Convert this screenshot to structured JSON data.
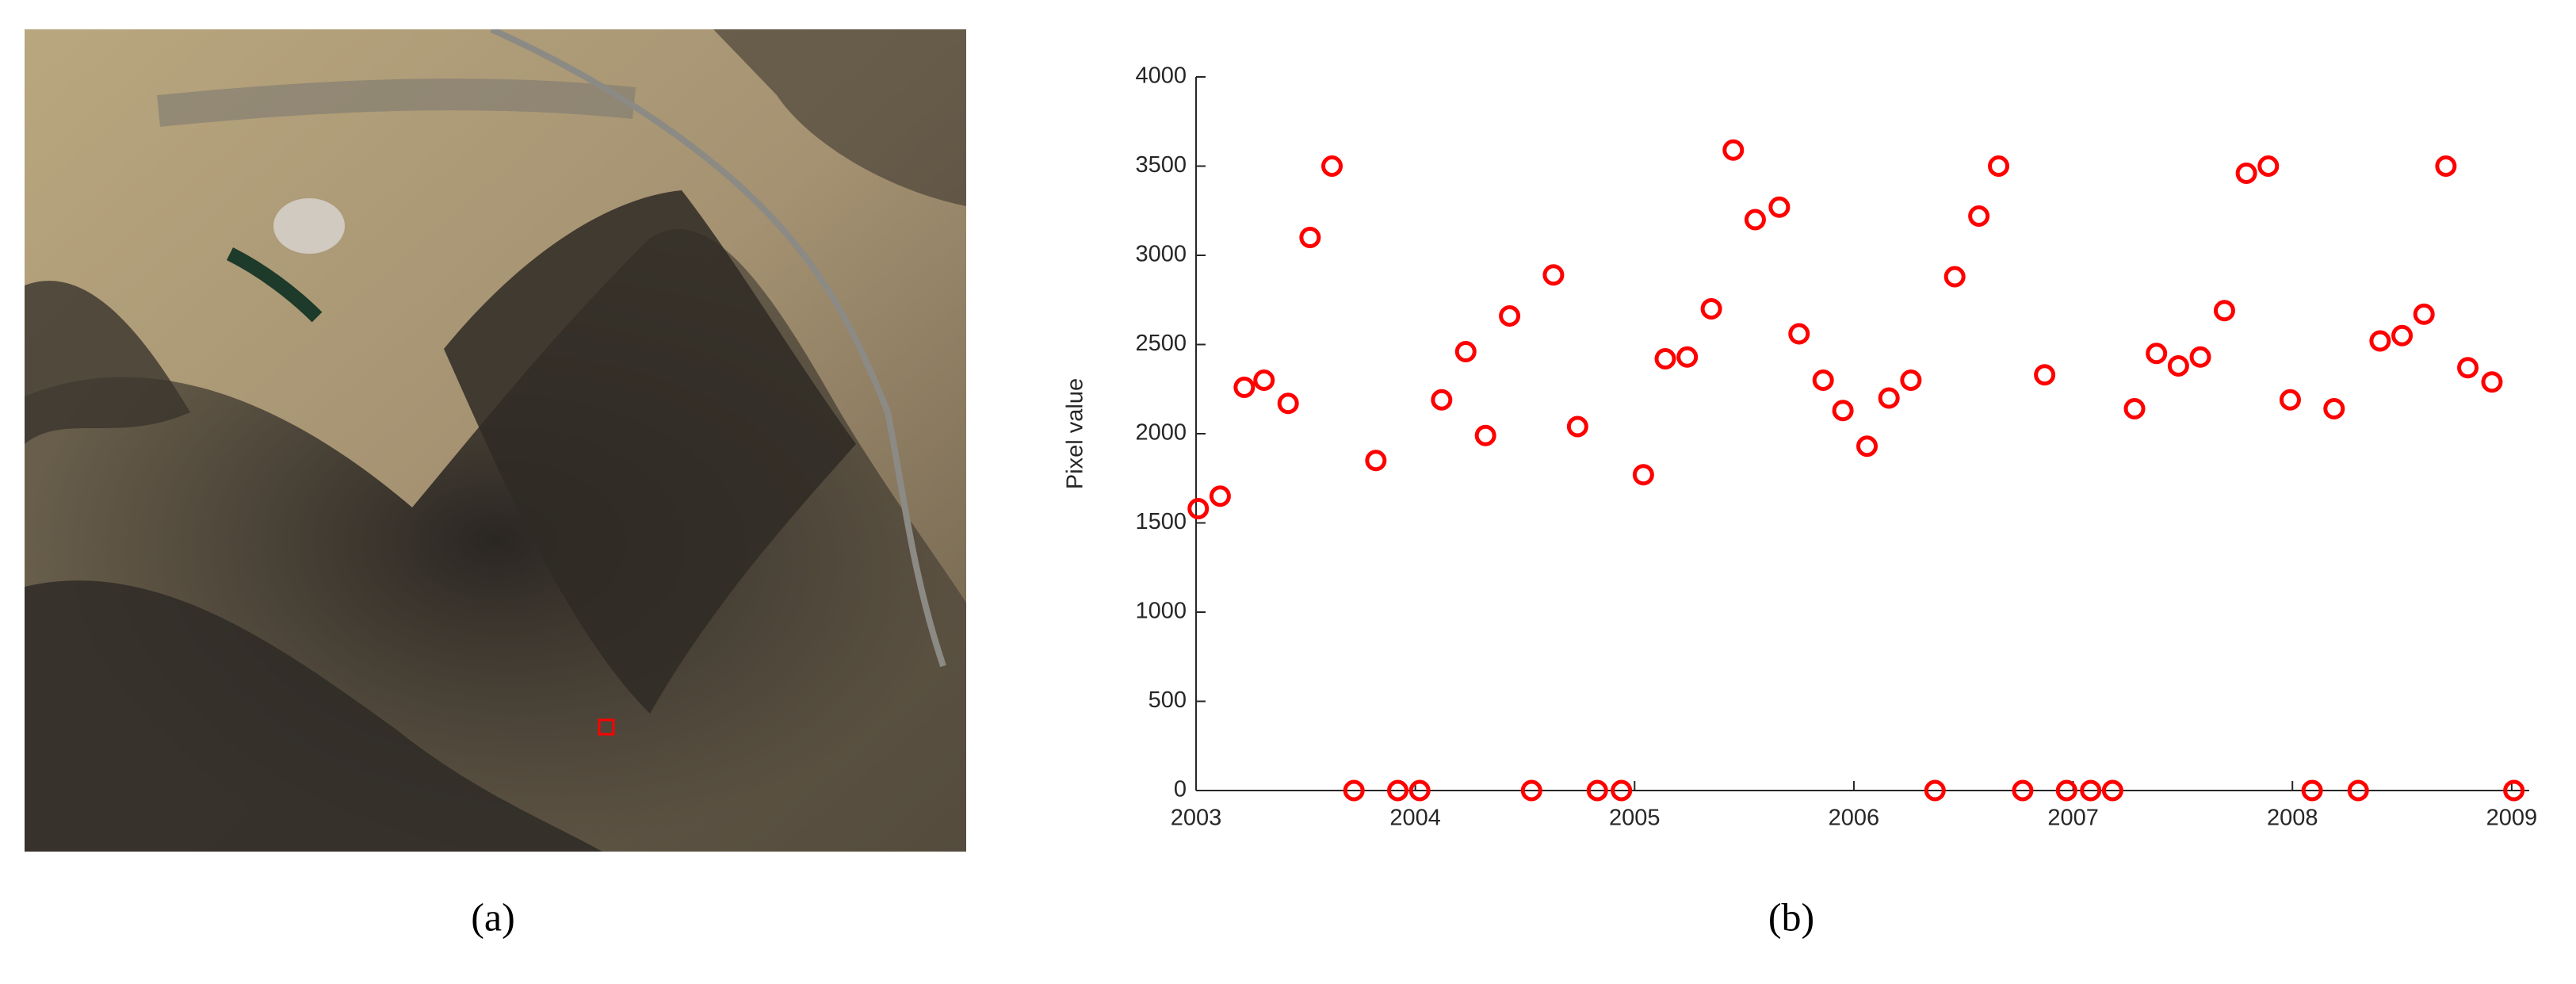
{
  "panel_labels": [
    "(a)",
    "(b)"
  ],
  "chart_data": {
    "type": "scatter",
    "y_label": "Pixel value",
    "marker_color": "#ff0000",
    "x": [
      2003.01,
      2003.11,
      2003.22,
      2003.31,
      2003.42,
      2003.52,
      2003.62,
      2003.72,
      2003.82,
      2003.92,
      2004.02,
      2004.12,
      2004.23,
      2004.32,
      2004.43,
      2004.53,
      2004.63,
      2004.74,
      2004.83,
      2004.94,
      2005.04,
      2005.14,
      2005.24,
      2005.35,
      2005.45,
      2005.55,
      2005.66,
      2005.75,
      2005.86,
      2005.95,
      2006.06,
      2006.16,
      2006.26,
      2006.37,
      2006.46,
      2006.57,
      2006.66,
      2006.77,
      2006.87,
      2006.97,
      2007.08,
      2007.18,
      2007.28,
      2007.38,
      2007.48,
      2007.58,
      2007.69,
      2007.79,
      2007.89,
      2007.99,
      2008.09,
      2008.19,
      2008.3,
      2008.4,
      2008.5,
      2008.6,
      2008.7,
      2008.8,
      2008.91,
      2009.01
    ],
    "values": [
      1580,
      1650,
      2260,
      2300,
      2170,
      3100,
      3500,
      0,
      1850,
      0,
      0,
      2190,
      2460,
      1990,
      2660,
      0,
      2890,
      2040,
      0,
      0,
      1770,
      2420,
      2430,
      2700,
      3590,
      3200,
      3270,
      2560,
      2300,
      2130,
      1930,
      2200,
      2300,
      0,
      2880,
      3220,
      3500,
      0,
      2330,
      0,
      0,
      0,
      2140,
      2450,
      2380,
      2430,
      2690,
      3460,
      3500,
      2190,
      0,
      2140,
      0,
      2520,
      2550,
      2670,
      3500,
      2370,
      2290,
      0
    ],
    "xlim": [
      2003,
      2009.08
    ],
    "xticks": [
      2003,
      2004,
      2005,
      2006,
      2007,
      2008,
      2009
    ],
    "ylim": [
      0,
      4000
    ],
    "yticks": [
      0,
      500,
      1000,
      1500,
      2000,
      2500,
      3000,
      3500,
      4000
    ]
  }
}
